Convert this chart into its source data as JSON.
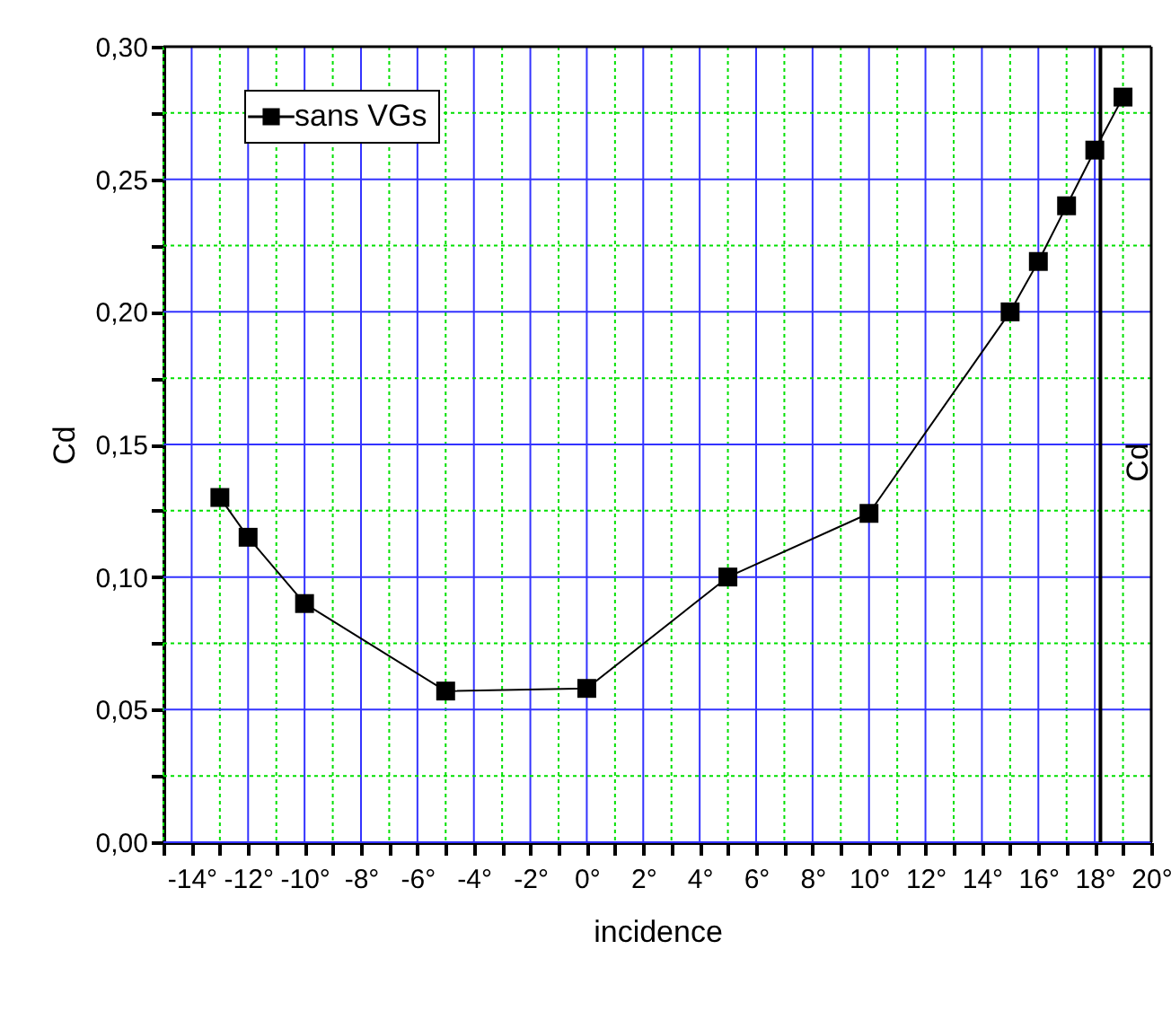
{
  "chart_data": {
    "type": "line",
    "xlabel": "incidence",
    "ylabel": "Cd",
    "y2label": "Cd",
    "x": [
      -13,
      -12,
      -10,
      -5,
      0,
      5,
      10,
      15,
      16,
      17,
      18,
      19
    ],
    "series": [
      {
        "name": "sans VGs",
        "color": "#000000",
        "values": [
          0.13,
          0.115,
          0.09,
          0.057,
          0.058,
          0.1,
          0.124,
          0.2,
          0.219,
          0.24,
          0.261,
          0.281
        ]
      }
    ],
    "xlim": [
      -15,
      20
    ],
    "xticks": [
      {
        "value": -15,
        "label": null
      },
      {
        "value": -14,
        "label": "-14°"
      },
      {
        "value": -13,
        "label": null
      },
      {
        "value": -12,
        "label": "-12°"
      },
      {
        "value": -11,
        "label": null
      },
      {
        "value": -10,
        "label": "-10°"
      },
      {
        "value": -9,
        "label": null
      },
      {
        "value": -8,
        "label": "-8°"
      },
      {
        "value": -7,
        "label": null
      },
      {
        "value": -6,
        "label": "-6°"
      },
      {
        "value": -5,
        "label": null
      },
      {
        "value": -4,
        "label": "-4°"
      },
      {
        "value": -3,
        "label": null
      },
      {
        "value": -2,
        "label": "-2°"
      },
      {
        "value": -1,
        "label": null
      },
      {
        "value": 0,
        "label": "0°"
      },
      {
        "value": 1,
        "label": null
      },
      {
        "value": 2,
        "label": "2°"
      },
      {
        "value": 3,
        "label": null
      },
      {
        "value": 4,
        "label": "4°"
      },
      {
        "value": 5,
        "label": null
      },
      {
        "value": 6,
        "label": "6°"
      },
      {
        "value": 7,
        "label": null
      },
      {
        "value": 8,
        "label": "8°"
      },
      {
        "value": 9,
        "label": null
      },
      {
        "value": 10,
        "label": "10°"
      },
      {
        "value": 11,
        "label": null
      },
      {
        "value": 12,
        "label": "12°"
      },
      {
        "value": 13,
        "label": null
      },
      {
        "value": 14,
        "label": "14°"
      },
      {
        "value": 15,
        "label": null
      },
      {
        "value": 16,
        "label": "16°"
      },
      {
        "value": 17,
        "label": null
      },
      {
        "value": 18,
        "label": "18°"
      },
      {
        "value": 19,
        "label": null
      },
      {
        "value": 20,
        "label": "20°"
      }
    ],
    "ylim": [
      0,
      0.3
    ],
    "yticks": [
      {
        "value": 0,
        "label": "0,00"
      },
      {
        "value": 0.025,
        "label": null
      },
      {
        "value": 0.05,
        "label": "0,05"
      },
      {
        "value": 0.075,
        "label": null
      },
      {
        "value": 0.1,
        "label": "0,10"
      },
      {
        "value": 0.125,
        "label": null
      },
      {
        "value": 0.15,
        "label": "0,15"
      },
      {
        "value": 0.175,
        "label": null
      },
      {
        "value": 0.2,
        "label": "0,20"
      },
      {
        "value": 0.225,
        "label": null
      },
      {
        "value": 0.25,
        "label": "0,25"
      },
      {
        "value": 0.275,
        "label": null
      },
      {
        "value": 0.3,
        "label": "0,30"
      }
    ],
    "ref_lines": [
      {
        "axis": "x",
        "value": 18.2,
        "color": "#000000"
      }
    ],
    "grid": true,
    "legend": "top left",
    "marker": "square",
    "line_style": "solid"
  }
}
